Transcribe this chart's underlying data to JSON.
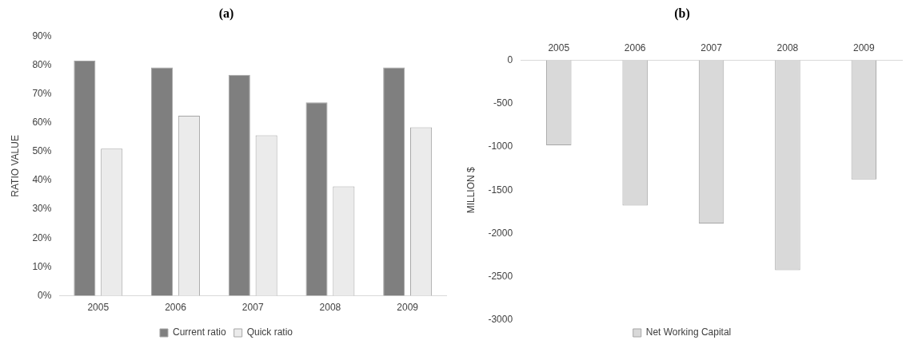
{
  "chart_data": [
    {
      "type": "bar",
      "title": "(a)",
      "ylabel": "RATIO VALUE",
      "categories": [
        "2005",
        "2006",
        "2007",
        "2008",
        "2009"
      ],
      "series": [
        {
          "name": "Current ratio",
          "color": "#7f7f7f",
          "values": [
            81.5,
            79.1,
            76.6,
            67.0,
            79.1
          ]
        },
        {
          "name": "Quick ratio",
          "color": "#ebebeb",
          "values": [
            51.0,
            62.4,
            55.6,
            37.9,
            58.4
          ]
        }
      ],
      "ylim": [
        0,
        90
      ],
      "yticks": [
        {
          "value": 0,
          "label": "0%"
        },
        {
          "value": 10,
          "label": "10%"
        },
        {
          "value": 20,
          "label": "20%"
        },
        {
          "value": 30,
          "label": "30%"
        },
        {
          "value": 40,
          "label": "40%"
        },
        {
          "value": 50,
          "label": "50%"
        },
        {
          "value": 60,
          "label": "60%"
        },
        {
          "value": 70,
          "label": "70%"
        },
        {
          "value": 80,
          "label": "80%"
        },
        {
          "value": 90,
          "label": "90%"
        }
      ],
      "legend": "bottom"
    },
    {
      "type": "bar",
      "title": "(b)",
      "ylabel": "MILLION $",
      "categories": [
        "2005",
        "2006",
        "2007",
        "2008",
        "2009"
      ],
      "series": [
        {
          "name": "Net Working Capital",
          "color": "#d9d9d9",
          "values": [
            -981,
            -1677,
            -1885,
            -2424,
            -1376
          ]
        }
      ],
      "ylim": [
        -3000,
        0
      ],
      "yticks": [
        -3000,
        -2500,
        -2000,
        -1500,
        -1000,
        -500,
        0
      ],
      "legend": "bottom"
    }
  ]
}
